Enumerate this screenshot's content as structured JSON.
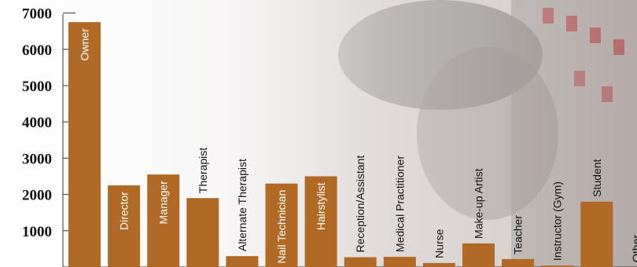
{
  "chart_data": {
    "type": "bar",
    "categories": [
      "Owner",
      "Director",
      "Manager",
      "Therapist",
      "Alternate Therapist",
      "Nail Technician",
      "Hairstylist",
      "Reception/Assistant",
      "Medical Practitioner",
      "Nurse",
      "Make-up Artist",
      "Teacher",
      "Instructor (Gym)",
      "Student",
      "Other"
    ],
    "values": [
      6750,
      2250,
      2550,
      1900,
      300,
      2300,
      2500,
      270,
      280,
      110,
      650,
      220,
      40,
      1800,
      0
    ],
    "y_ticks": [
      "1000",
      "2000",
      "3000",
      "4000",
      "5000",
      "6000",
      "7000"
    ],
    "ylim": [
      0,
      7300
    ],
    "title": "",
    "xlabel": "",
    "ylabel": "",
    "grid": false
  },
  "colors": {
    "bar": "#b06a25",
    "label_inside": "#ffffff",
    "label_outside": "#111111",
    "axis": "#333333"
  }
}
